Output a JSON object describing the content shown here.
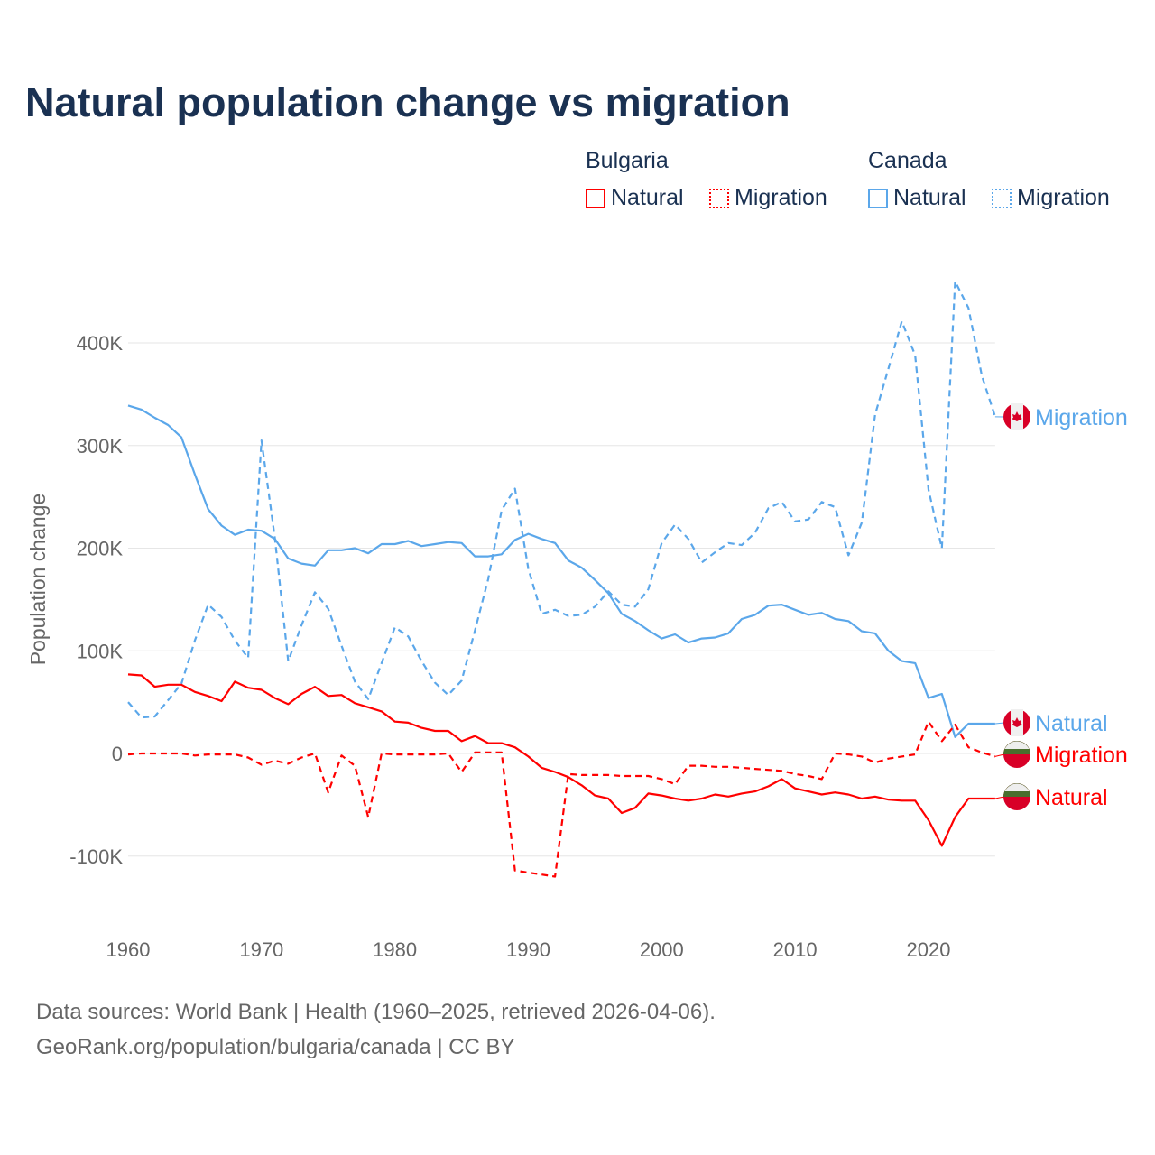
{
  "colors": {
    "bulgaria": "#ff0000",
    "canada": "#5ba7ea",
    "title": "#1a3152",
    "grid": "#e6e6e6",
    "axis_text": "#666666"
  },
  "legend": {
    "groups": [
      {
        "name": "Bulgaria",
        "items": [
          {
            "label": "Natural",
            "style": "solid"
          },
          {
            "label": "Migration",
            "style": "dotted"
          }
        ]
      },
      {
        "name": "Canada",
        "items": [
          {
            "label": "Natural",
            "style": "solid"
          },
          {
            "label": "Migration",
            "style": "dotted"
          }
        ]
      }
    ]
  },
  "footer": {
    "line1": "Data sources: World Bank | Health (1960–2025, retrieved 2026-04-06).",
    "line2": "GeoRank.org/population/bulgaria/canada | CC BY"
  },
  "chart_data": {
    "type": "line",
    "title": "Natural population change vs migration",
    "xlabel": "",
    "ylabel": "Population change",
    "xlim": [
      1960,
      2025
    ],
    "ylim": [
      -150000,
      470000
    ],
    "yticks": [
      -100000,
      0,
      100000,
      200000,
      300000,
      400000
    ],
    "ytick_labels": [
      "-100K",
      "0",
      "100K",
      "200K",
      "300K",
      "400K"
    ],
    "xticks": [
      1960,
      1970,
      1980,
      1990,
      2000,
      2010,
      2020
    ],
    "xtick_labels": [
      "1960",
      "1970",
      "1980",
      "1990",
      "2000",
      "2010",
      "2020"
    ],
    "grid": true,
    "legend_position": "top-right",
    "x_start": 1960,
    "series": [
      {
        "name": "Canada Migration",
        "country": "canada",
        "dashed": true,
        "end_label": "Migration",
        "values": [
          50000,
          35000,
          36000,
          52000,
          68000,
          110000,
          145000,
          133000,
          110000,
          93000,
          305000,
          210000,
          90000,
          125000,
          157000,
          141000,
          105000,
          70000,
          53000,
          88000,
          123000,
          114000,
          90000,
          69000,
          57000,
          71000,
          120000,
          170000,
          237000,
          258000,
          180000,
          136000,
          140000,
          134000,
          135000,
          143000,
          158000,
          145000,
          143000,
          160000,
          205000,
          223000,
          209000,
          186000,
          196000,
          205000,
          203000,
          215000,
          239000,
          245000,
          226000,
          228000,
          245000,
          240000,
          193000,
          225000,
          330000,
          375000,
          421000,
          388000,
          257000,
          200000,
          460000,
          434000,
          368000,
          328000
        ]
      },
      {
        "name": "Canada Natural",
        "country": "canada",
        "dashed": false,
        "end_label": "Natural",
        "values": [
          339000,
          335000,
          327000,
          320000,
          308000,
          272000,
          238000,
          222000,
          213000,
          218000,
          217000,
          209000,
          190000,
          185000,
          183000,
          198000,
          198000,
          200000,
          195000,
          204000,
          204000,
          207000,
          202000,
          204000,
          206000,
          205000,
          192000,
          192000,
          194000,
          208000,
          214000,
          209000,
          205000,
          188000,
          181000,
          169000,
          156000,
          136000,
          129000,
          120000,
          112000,
          116000,
          108000,
          112000,
          113000,
          117000,
          131000,
          135000,
          144000,
          145000,
          140000,
          135000,
          137000,
          131000,
          129000,
          119000,
          117000,
          100000,
          90000,
          88000,
          54000,
          58000,
          16000,
          29000,
          29000,
          29000
        ]
      },
      {
        "name": "Bulgaria Migration",
        "country": "bulgaria",
        "dashed": true,
        "end_label": "Migration",
        "values": [
          -1000,
          0,
          0,
          0,
          0,
          -2000,
          -1000,
          -1000,
          -1000,
          -4000,
          -11000,
          -7000,
          -10000,
          -4000,
          0,
          -38000,
          -2000,
          -12000,
          -62000,
          0,
          -1000,
          -1000,
          -1000,
          -1000,
          0,
          -18000,
          1000,
          1000,
          1000,
          -114000,
          -116000,
          -118000,
          -120000,
          -20000,
          -21000,
          -21000,
          -21000,
          -22000,
          -22000,
          -22000,
          -25000,
          -30000,
          -12000,
          -12000,
          -13000,
          -13000,
          -14000,
          -15000,
          -16000,
          -17000,
          -20000,
          -22000,
          -25000,
          0,
          -1000,
          -3000,
          -9000,
          -5000,
          -3000,
          -1000,
          31000,
          12000,
          28000,
          6000,
          1000,
          -3000
        ]
      },
      {
        "name": "Bulgaria Natural",
        "country": "bulgaria",
        "dashed": false,
        "end_label": "Natural",
        "values": [
          77000,
          76000,
          65000,
          67000,
          67000,
          60000,
          56000,
          51000,
          70000,
          64000,
          62000,
          54000,
          48000,
          58000,
          65000,
          56000,
          57000,
          49000,
          45000,
          41000,
          31000,
          30000,
          25000,
          22000,
          22000,
          12000,
          17000,
          10000,
          10000,
          6000,
          -3000,
          -14000,
          -18000,
          -23000,
          -31000,
          -41000,
          -44000,
          -58000,
          -53000,
          -39000,
          -41000,
          -44000,
          -46000,
          -44000,
          -40000,
          -42000,
          -39000,
          -37000,
          -32000,
          -25000,
          -34000,
          -37000,
          -40000,
          -38000,
          -40000,
          -44000,
          -42000,
          -45000,
          -46000,
          -46000,
          -65000,
          -90000,
          -62000,
          -44000,
          -44000,
          -44000
        ]
      }
    ]
  }
}
